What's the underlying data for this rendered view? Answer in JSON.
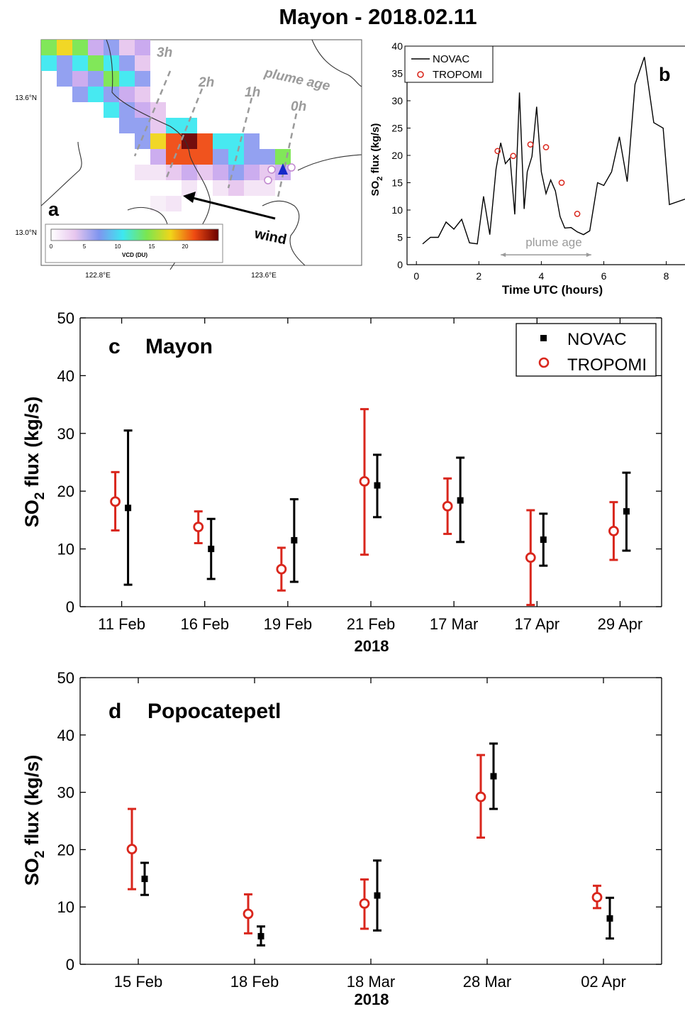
{
  "figure_title": "Mayon - 2018.02.11",
  "chart_data": [
    {
      "panel": "a",
      "type": "heatmap",
      "panel_letter": "a",
      "lat_ticks": [
        "13.6°N",
        "13.0°N"
      ],
      "lon_ticks": [
        "122.8°E",
        "123.6°E"
      ],
      "colorbar": {
        "label": "VCD (DU)",
        "ticks": [
          "0",
          "5",
          "10",
          "15",
          "20"
        ],
        "range": [
          0,
          25
        ],
        "colors": [
          "#ffffff",
          "#e7c6ee",
          "#7f95ef",
          "#3de8f0",
          "#7ae650",
          "#f0d51a",
          "#ef4a12",
          "#6b0000"
        ]
      },
      "plume_age_labels": [
        "3h",
        "2h",
        "1h",
        "0h"
      ],
      "plume_age_title": "plume age",
      "wind_label": "wind"
    },
    {
      "panel": "b",
      "type": "line",
      "panel_letter": "b",
      "xlabel": "Time UTC (hours)",
      "ylabel": "SO2 flux (kg/s)",
      "xlim": [
        -0.3,
        8.6
      ],
      "ylim": [
        0,
        40
      ],
      "xticks": [
        0,
        2,
        4,
        6,
        8
      ],
      "yticks": [
        0,
        5,
        10,
        15,
        20,
        25,
        30,
        35,
        40
      ],
      "legend": [
        "NOVAC",
        "TROPOMI"
      ],
      "range_label": "plume age",
      "range": [
        2.7,
        5.6
      ],
      "series": [
        {
          "name": "NOVAC",
          "kind": "line",
          "color": "#000000",
          "x": [
            0.2,
            0.45,
            0.7,
            0.95,
            1.2,
            1.45,
            1.7,
            1.95,
            2.15,
            2.35,
            2.55,
            2.7,
            2.85,
            3.0,
            3.15,
            3.3,
            3.45,
            3.55,
            3.7,
            3.85,
            4.0,
            4.15,
            4.3,
            4.45,
            4.6,
            4.75,
            4.95,
            5.15,
            5.35,
            5.55,
            5.8,
            6.0,
            6.25,
            6.5,
            6.75,
            7.0,
            7.3,
            7.6,
            7.9,
            8.1,
            8.6
          ],
          "y": [
            3.8,
            5.0,
            5.0,
            7.8,
            6.5,
            8.3,
            4.0,
            3.8,
            12.5,
            5.5,
            17.5,
            22.3,
            18.5,
            19.5,
            9.2,
            31.5,
            10.2,
            17.0,
            19.8,
            28.9,
            17.0,
            13.0,
            15.5,
            13.5,
            8.8,
            6.7,
            6.8,
            6.0,
            5.5,
            6.2,
            15.0,
            14.5,
            17.0,
            23.4,
            15.2,
            33.0,
            38.0,
            26.0,
            25.0,
            11.0,
            12.0
          ]
        },
        {
          "name": "TROPOMI",
          "kind": "scatter",
          "color": "#d9261c",
          "x": [
            2.6,
            3.1,
            3.65,
            4.15,
            4.65,
            5.15
          ],
          "y": [
            20.8,
            19.9,
            22.0,
            21.5,
            15.0,
            9.3
          ]
        }
      ]
    },
    {
      "panel": "c",
      "type": "scatter",
      "panel_letter": "c",
      "panel_name": "Mayon",
      "xlabel": "2018",
      "ylabel": "SO2 flux (kg/s)",
      "ylim": [
        0,
        50
      ],
      "yticks": [
        0,
        10,
        20,
        30,
        40,
        50
      ],
      "categories": [
        "11 Feb",
        "16 Feb",
        "19 Feb",
        "21 Feb",
        "17 Mar",
        "17 Apr",
        "29 Apr"
      ],
      "legend": [
        "NOVAC",
        "TROPOMI"
      ],
      "series": [
        {
          "name": "TROPOMI",
          "color": "#d9261c",
          "values": [
            18.2,
            13.8,
            6.5,
            21.7,
            17.4,
            8.5,
            13.1
          ],
          "lower": [
            13.2,
            11.0,
            2.8,
            9.0,
            12.6,
            0.3,
            8.1
          ],
          "upper": [
            23.3,
            16.5,
            10.2,
            34.2,
            22.2,
            16.7,
            18.1
          ]
        },
        {
          "name": "NOVAC",
          "color": "#000000",
          "values": [
            17.1,
            10.0,
            11.5,
            21.0,
            18.4,
            11.6,
            16.5
          ],
          "lower": [
            3.8,
            4.8,
            4.3,
            15.5,
            11.2,
            7.1,
            9.7
          ],
          "upper": [
            30.5,
            15.2,
            18.6,
            26.3,
            25.8,
            16.1,
            23.2
          ]
        }
      ]
    },
    {
      "panel": "d",
      "type": "scatter",
      "panel_letter": "d",
      "panel_name": "Popocatepetl",
      "xlabel": "2018",
      "ylabel": "SO2 flux (kg/s)",
      "ylim": [
        0,
        50
      ],
      "yticks": [
        0,
        10,
        20,
        30,
        40,
        50
      ],
      "categories": [
        "15 Feb",
        "18 Feb",
        "18 Mar",
        "28 Mar",
        "02 Apr"
      ],
      "series": [
        {
          "name": "TROPOMI",
          "color": "#d9261c",
          "values": [
            20.1,
            8.8,
            10.6,
            29.2,
            11.7
          ],
          "lower": [
            13.1,
            5.4,
            6.2,
            22.1,
            9.8
          ],
          "upper": [
            27.1,
            12.2,
            14.8,
            36.5,
            13.7
          ]
        },
        {
          "name": "NOVAC",
          "color": "#000000",
          "values": [
            14.9,
            4.9,
            12.0,
            32.8,
            8.0
          ],
          "lower": [
            12.1,
            3.3,
            5.9,
            27.1,
            4.5
          ],
          "upper": [
            17.7,
            6.6,
            18.1,
            38.5,
            11.6
          ]
        }
      ]
    }
  ]
}
